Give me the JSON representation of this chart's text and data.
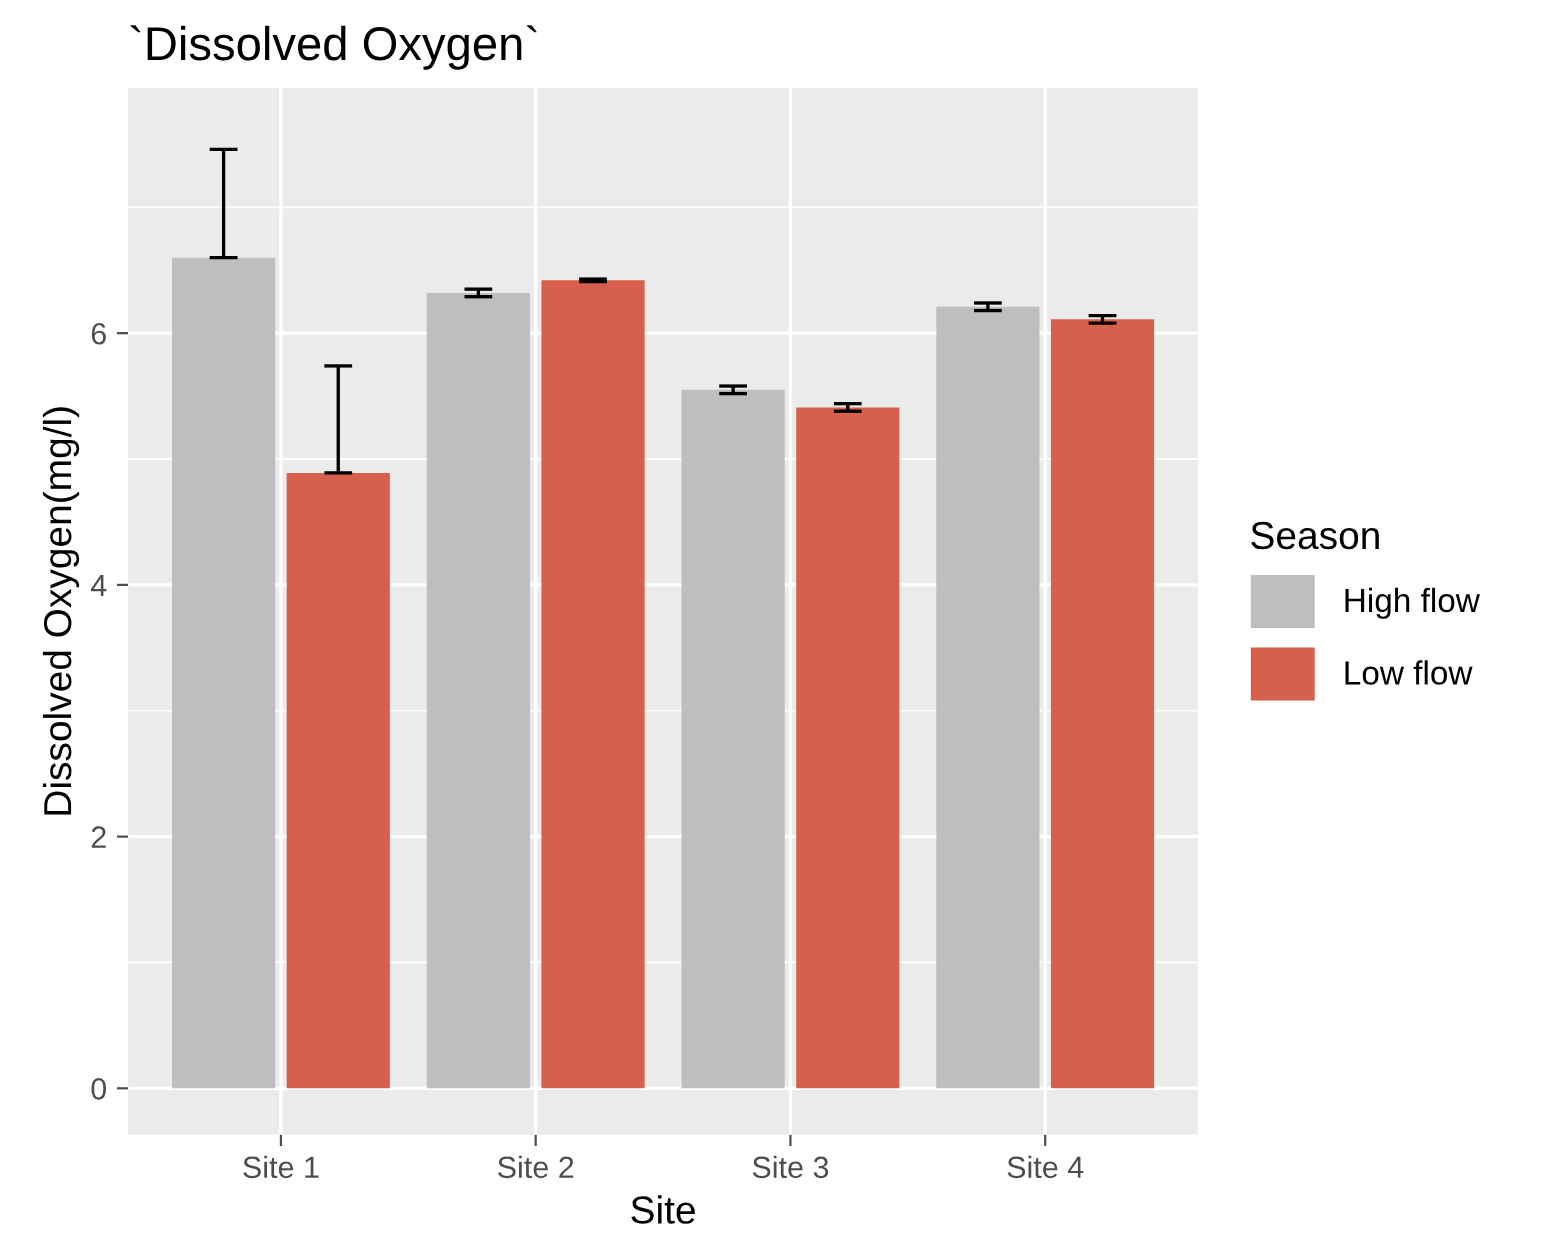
{
  "chart_data": {
    "type": "bar",
    "title": "`Dissolved Oxygen`",
    "xlabel": "Site",
    "ylabel": "Dissolved Oxygen(mg/l)",
    "legend_title": "Season",
    "categories": [
      "Site 1",
      "Site 2",
      "Site 3",
      "Site 4"
    ],
    "series": [
      {
        "name": "High flow",
        "color": "#bebebe",
        "values": [
          6.6,
          6.32,
          5.55,
          6.21
        ],
        "errors": [
          [
            6.6,
            7.46
          ],
          0.03,
          0.03,
          0.03
        ]
      },
      {
        "name": "Low flow",
        "color": "#d65f4d",
        "values": [
          4.89,
          6.42,
          5.41,
          6.11
        ],
        "errors": [
          [
            4.89,
            5.74
          ],
          0.01,
          0.03,
          0.03
        ]
      }
    ],
    "ylim": [
      -0.37,
      7.95
    ],
    "yticks": [
      0,
      2,
      4,
      6
    ],
    "grid": true,
    "legend": "right"
  }
}
